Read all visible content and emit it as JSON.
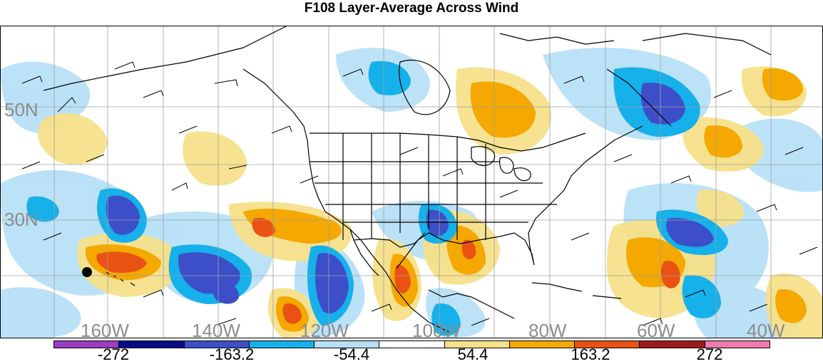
{
  "title": "F108 Layer-Average Across Wind",
  "map": {
    "lat_labels": [
      "50N",
      "30N"
    ],
    "lon_labels": [
      "160W",
      "140W",
      "120W",
      "100W",
      "80W",
      "60W",
      "40W"
    ]
  },
  "colorbar": {
    "labels": [
      "-272",
      "-163.2",
      "-54.4",
      "54.4",
      "163.2",
      "272"
    ],
    "colors": [
      "#9a3dc6",
      "#0a0a8c",
      "#3c4fc8",
      "#16b0ea",
      "#b8e0f7",
      "#ffffff",
      "#f6e08a",
      "#f4a800",
      "#ea5214",
      "#a0191c",
      "#f07ab0"
    ]
  },
  "legend_colors": {
    "dark_blue": "#3c4fc8",
    "navy": "#1a1a9c",
    "cyan": "#16b0ea",
    "light_blue": "#b8e0f7",
    "light_yellow": "#f6e08a",
    "orange": "#f4a800",
    "red_orange": "#ea5214"
  }
}
